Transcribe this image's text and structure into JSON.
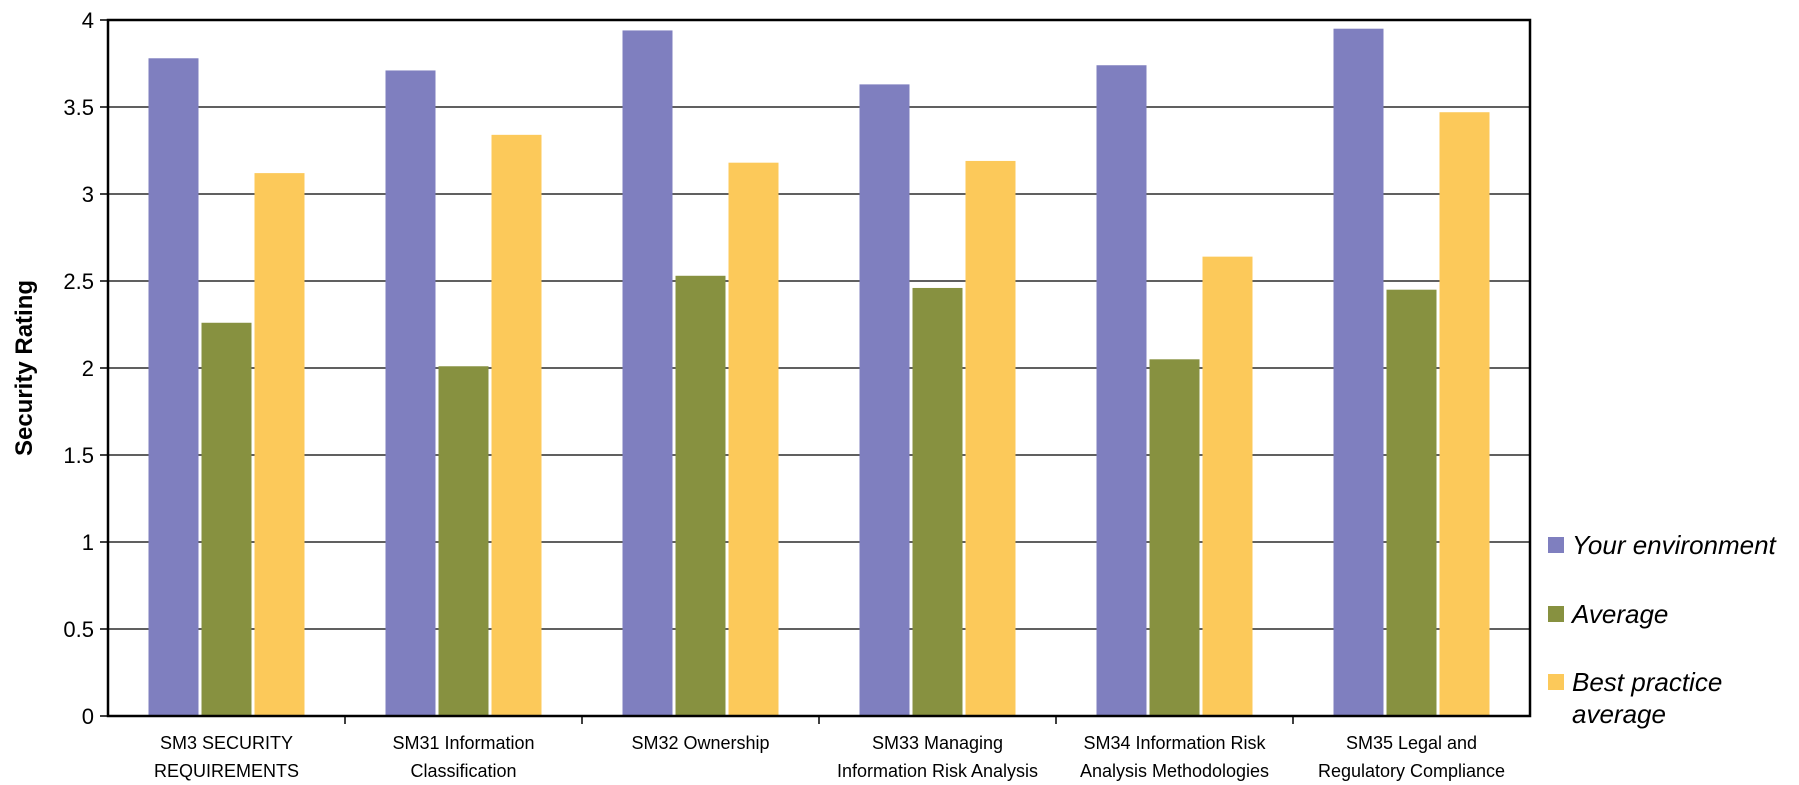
{
  "chart_data": {
    "type": "bar",
    "title": "",
    "xlabel": "",
    "ylabel": "Security Rating",
    "ylim": [
      0,
      4
    ],
    "yticks": [
      "0",
      "0.5",
      "1",
      "1.5",
      "2",
      "2.5",
      "3",
      "3.5",
      "4"
    ],
    "grid": true,
    "legend_position": "right",
    "categories": [
      [
        "SM3 SECURITY",
        "REQUIREMENTS"
      ],
      [
        "SM31 Information",
        "Classification"
      ],
      [
        "SM32 Ownership"
      ],
      [
        "SM33 Managing",
        "Information Risk Analysis"
      ],
      [
        "SM34 Information Risk",
        "Analysis Methodologies"
      ],
      [
        "SM35 Legal and",
        "Regulatory Compliance"
      ]
    ],
    "series": [
      {
        "name": "Your environment",
        "color": "#7f7fbf",
        "values": [
          3.78,
          3.71,
          3.94,
          3.63,
          3.74,
          3.95
        ]
      },
      {
        "name": "Average",
        "color": "#879140",
        "values": [
          2.26,
          2.01,
          2.53,
          2.46,
          2.05,
          2.45
        ]
      },
      {
        "name": "Best practice average",
        "legend_lines": [
          "Best practice",
          "average"
        ],
        "color": "#fcc95a",
        "values": [
          3.12,
          3.34,
          3.18,
          3.19,
          2.64,
          3.47
        ]
      }
    ]
  }
}
